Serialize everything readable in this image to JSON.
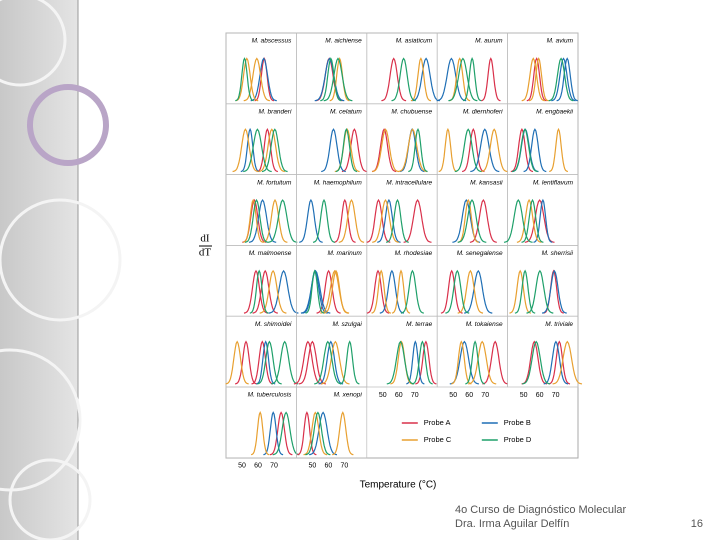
{
  "slide": {
    "figure": {
      "y_label_top": "dI",
      "y_label_bottom": "dT",
      "panels": [
        "M. abscessus",
        "M. aichiense",
        "M. asiaticum",
        "M. aurum",
        "M. avium",
        "M. branderi",
        "M. celatum",
        "M. chubuense",
        "M. diernhoferi",
        "M. engbaekii",
        "M. fortuitum",
        "M. haemophilum",
        "M. intracellulare",
        "M. kansasii",
        "M. lentiflavum",
        "M. malmoense",
        "M. marinum",
        "M. rhodesiae",
        "M. senegalense",
        "M. sherrisii",
        "M. shimoidei",
        "M. szulgai",
        "M. terrae",
        "M. tokaiense",
        "M. triviale",
        "M. tuberculosis",
        "M. xenopi"
      ],
      "x_ticks": [
        "50",
        "60",
        "70"
      ],
      "x_label": "Temperature (°C)",
      "legend": [
        {
          "name": "Probe A",
          "color": "#d9304a"
        },
        {
          "name": "Probe B",
          "color": "#1f6fb5"
        },
        {
          "name": "Probe C",
          "color": "#e8a030"
        },
        {
          "name": "Probe D",
          "color": "#1fa06a"
        }
      ]
    },
    "footer": {
      "line1": "4o Curso de Diagnóstico Molecular",
      "line2": "Dra. Irma Aguilar Delfín",
      "page": "16"
    }
  }
}
